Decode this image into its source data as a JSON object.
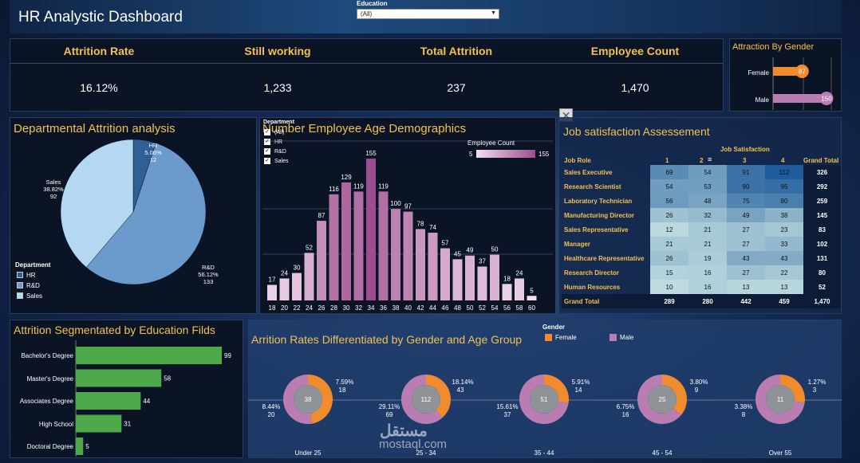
{
  "header": {
    "title": "HR Analystic Dashboard",
    "filter_label": "Education",
    "filter_value": "(All)"
  },
  "kpis": [
    {
      "label": "Attrition Rate",
      "value": "16.12%"
    },
    {
      "label": "Still working",
      "value": "1,233"
    },
    {
      "label": "Total Attrition",
      "value": "237"
    },
    {
      "label": "Employee Count",
      "value": "1,470"
    }
  ],
  "gender_attraction": {
    "title": "Attraction By Gender",
    "rows": [
      {
        "label": "Female",
        "value": 87,
        "color": "#f08c2e"
      },
      {
        "label": "Male",
        "value": 150,
        "color": "#b97db1"
      }
    ]
  },
  "dept_attrition": {
    "title": "Departmental Attrition analysis",
    "legend_title": "Department",
    "legend": [
      {
        "name": "HR",
        "color": "#2f5f94"
      },
      {
        "name": "R&D",
        "color": "#6b9bcd"
      },
      {
        "name": "Sales",
        "color": "#b4d8f1"
      }
    ],
    "labels": [
      {
        "name": "HR",
        "pct": "5.06%",
        "count": "12"
      },
      {
        "name": "R&D",
        "pct": "56.12%",
        "count": "133"
      },
      {
        "name": "Sales",
        "pct": "38.82%",
        "count": "92"
      }
    ]
  },
  "age_demo": {
    "title": "Number Employee Age Demographics",
    "department_filter": {
      "title": "Department",
      "options": [
        "(All)",
        "HR",
        "R&D",
        "Sales"
      ]
    },
    "color_legend": {
      "title": "Employee Count",
      "min": "5",
      "max": "155"
    }
  },
  "chart_data": [
    {
      "type": "pie",
      "title": "Departmental Attrition analysis",
      "legend_title": "Department",
      "slices": [
        {
          "label": "HR",
          "value": 12,
          "pct": 5.06,
          "color": "#2f5f94"
        },
        {
          "label": "R&D",
          "value": 133,
          "pct": 56.12,
          "color": "#6b9bcd"
        },
        {
          "label": "Sales",
          "value": 92,
          "pct": 38.82,
          "color": "#b4d8f1"
        }
      ]
    },
    {
      "type": "bar",
      "title": "Number Employee Age Demographics",
      "categories": [
        "18",
        "20",
        "22",
        "24",
        "26",
        "28",
        "30",
        "32",
        "34",
        "36",
        "38",
        "40",
        "42",
        "44",
        "46",
        "48",
        "50",
        "52",
        "54",
        "56",
        "58",
        "60"
      ],
      "values": [
        17,
        24,
        30,
        52,
        87,
        116,
        129,
        119,
        155,
        119,
        100,
        97,
        78,
        74,
        57,
        45,
        49,
        37,
        50,
        18,
        24,
        5
      ],
      "color_scale": {
        "min": 5,
        "max": 155,
        "low_color": "#f3dded",
        "high_color": "#9c4e8e"
      }
    },
    {
      "type": "bar",
      "title": "Attrition Segmentated by Education Filds",
      "orientation": "horizontal",
      "categories": [
        "Bachelor's Degree",
        "Master's Degree",
        "Associates Degree",
        "High School",
        "Doctoral Degree"
      ],
      "values": [
        99,
        58,
        44,
        31,
        5
      ],
      "color": "#4ea94b"
    },
    {
      "type": "pie",
      "title": "Arrition Rates Differentiated by Gender and Age Group",
      "legend_title": "Gender",
      "series_names": [
        "Female",
        "Male"
      ],
      "colors": {
        "Female": "#f08c2e",
        "Male": "#b97db1"
      },
      "groups": [
        {
          "label": "Under 25",
          "total": "38",
          "female": {
            "pct": "7.59%",
            "count": 18
          },
          "male": {
            "pct": "8.44%",
            "count": 20
          }
        },
        {
          "label": "25 - 34",
          "total": "112",
          "female": {
            "pct": "18.14%",
            "count": 43
          },
          "male": {
            "pct": "29.11%",
            "count": 69
          }
        },
        {
          "label": "35 - 44",
          "total": "51",
          "female": {
            "pct": "5.91%",
            "count": 14
          },
          "male": {
            "pct": "15.61%",
            "count": 37
          }
        },
        {
          "label": "45 - 54",
          "total": "25",
          "female": {
            "pct": "3.80%",
            "count": 9
          },
          "male": {
            "pct": "6.75%",
            "count": 16
          }
        },
        {
          "label": "Over 55",
          "total": "11",
          "female": {
            "pct": "1.27%",
            "count": 3
          },
          "male": {
            "pct": "3.38%",
            "count": 8
          }
        }
      ]
    },
    {
      "type": "table",
      "title": "Job satisfaction Assessement",
      "row_header": "Job Role",
      "column_group": "Job Satisfaction",
      "columns": [
        "1",
        "2",
        "3",
        "4",
        "Grand Total"
      ],
      "rows": [
        {
          "role": "Sales Executive",
          "values": [
            69,
            54,
            91,
            112
          ],
          "total": "326"
        },
        {
          "role": "Research Scientist",
          "values": [
            54,
            53,
            90,
            95
          ],
          "total": "292"
        },
        {
          "role": "Laboratory Technician",
          "values": [
            56,
            48,
            75,
            80
          ],
          "total": "259"
        },
        {
          "role": "Manufacturing Director",
          "values": [
            26,
            32,
            49,
            38
          ],
          "total": "145"
        },
        {
          "role": "Sales Representative",
          "values": [
            12,
            21,
            27,
            23
          ],
          "total": "83"
        },
        {
          "role": "Manager",
          "values": [
            21,
            21,
            27,
            33
          ],
          "total": "102"
        },
        {
          "role": "Healthcare Representative",
          "values": [
            26,
            19,
            43,
            43
          ],
          "total": "131"
        },
        {
          "role": "Research Director",
          "values": [
            15,
            16,
            27,
            22
          ],
          "total": "80"
        },
        {
          "role": "Human Resources",
          "values": [
            10,
            16,
            13,
            13
          ],
          "total": "52"
        }
      ],
      "grand_total": {
        "label": "Grand Total",
        "values": [
          "289",
          "280",
          "442",
          "459"
        ],
        "total": "1,470"
      }
    }
  ],
  "watermark": {
    "arabic": "مستقل",
    "latin": "mostaql.com"
  }
}
